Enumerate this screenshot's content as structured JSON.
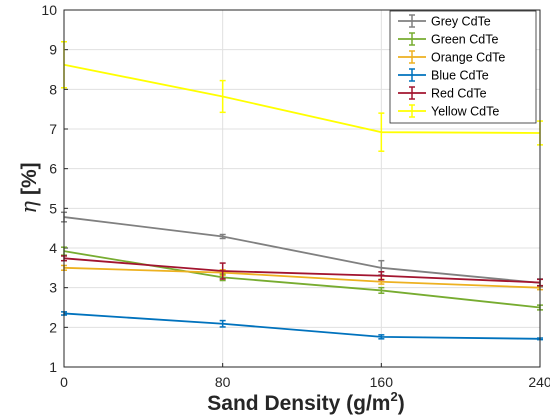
{
  "chart_data": {
    "type": "line",
    "x": [
      0,
      80,
      160,
      240
    ],
    "xticks": [
      "0",
      "80",
      "160",
      "240"
    ],
    "yticks": [
      "1",
      "2",
      "3",
      "4",
      "5",
      "6",
      "7",
      "8",
      "9",
      "10"
    ],
    "xlim": [
      0,
      240
    ],
    "ylim": [
      1,
      10
    ],
    "xlabel_main": "Sand Density (g/m",
    "xlabel_sup": "2",
    "xlabel_tail": ")",
    "ylabel_symbol": "η",
    "ylabel_unit": "[%]",
    "grid": true,
    "legend_position": "top-right",
    "series": [
      {
        "name": "Grey CdTe",
        "color": "#808080",
        "values": [
          4.78,
          4.29,
          3.5,
          3.12
        ],
        "errors": [
          0.12,
          0.05,
          0.18,
          0.1
        ]
      },
      {
        "name": "Green CdTe",
        "color": "#77ac30",
        "values": [
          3.92,
          3.26,
          2.93,
          2.5
        ],
        "errors": [
          0.1,
          0.08,
          0.07,
          0.06
        ]
      },
      {
        "name": "Orange CdTe",
        "color": "#edb120",
        "values": [
          3.5,
          3.38,
          3.15,
          3.0
        ],
        "errors": [
          0.06,
          0.07,
          0.06,
          0.05
        ]
      },
      {
        "name": "Blue CdTe",
        "color": "#0072bd",
        "values": [
          2.35,
          2.09,
          1.76,
          1.71
        ],
        "errors": [
          0.04,
          0.08,
          0.05,
          0.02
        ]
      },
      {
        "name": "Red CdTe",
        "color": "#a2142f",
        "values": [
          3.74,
          3.42,
          3.3,
          3.13
        ],
        "errors": [
          0.06,
          0.2,
          0.1,
          0.08
        ]
      },
      {
        "name": "Yellow CdTe",
        "color": "#ffff00",
        "values": [
          8.62,
          7.82,
          6.92,
          6.9
        ],
        "errors": [
          0.58,
          0.4,
          0.48,
          0.3
        ]
      }
    ]
  }
}
